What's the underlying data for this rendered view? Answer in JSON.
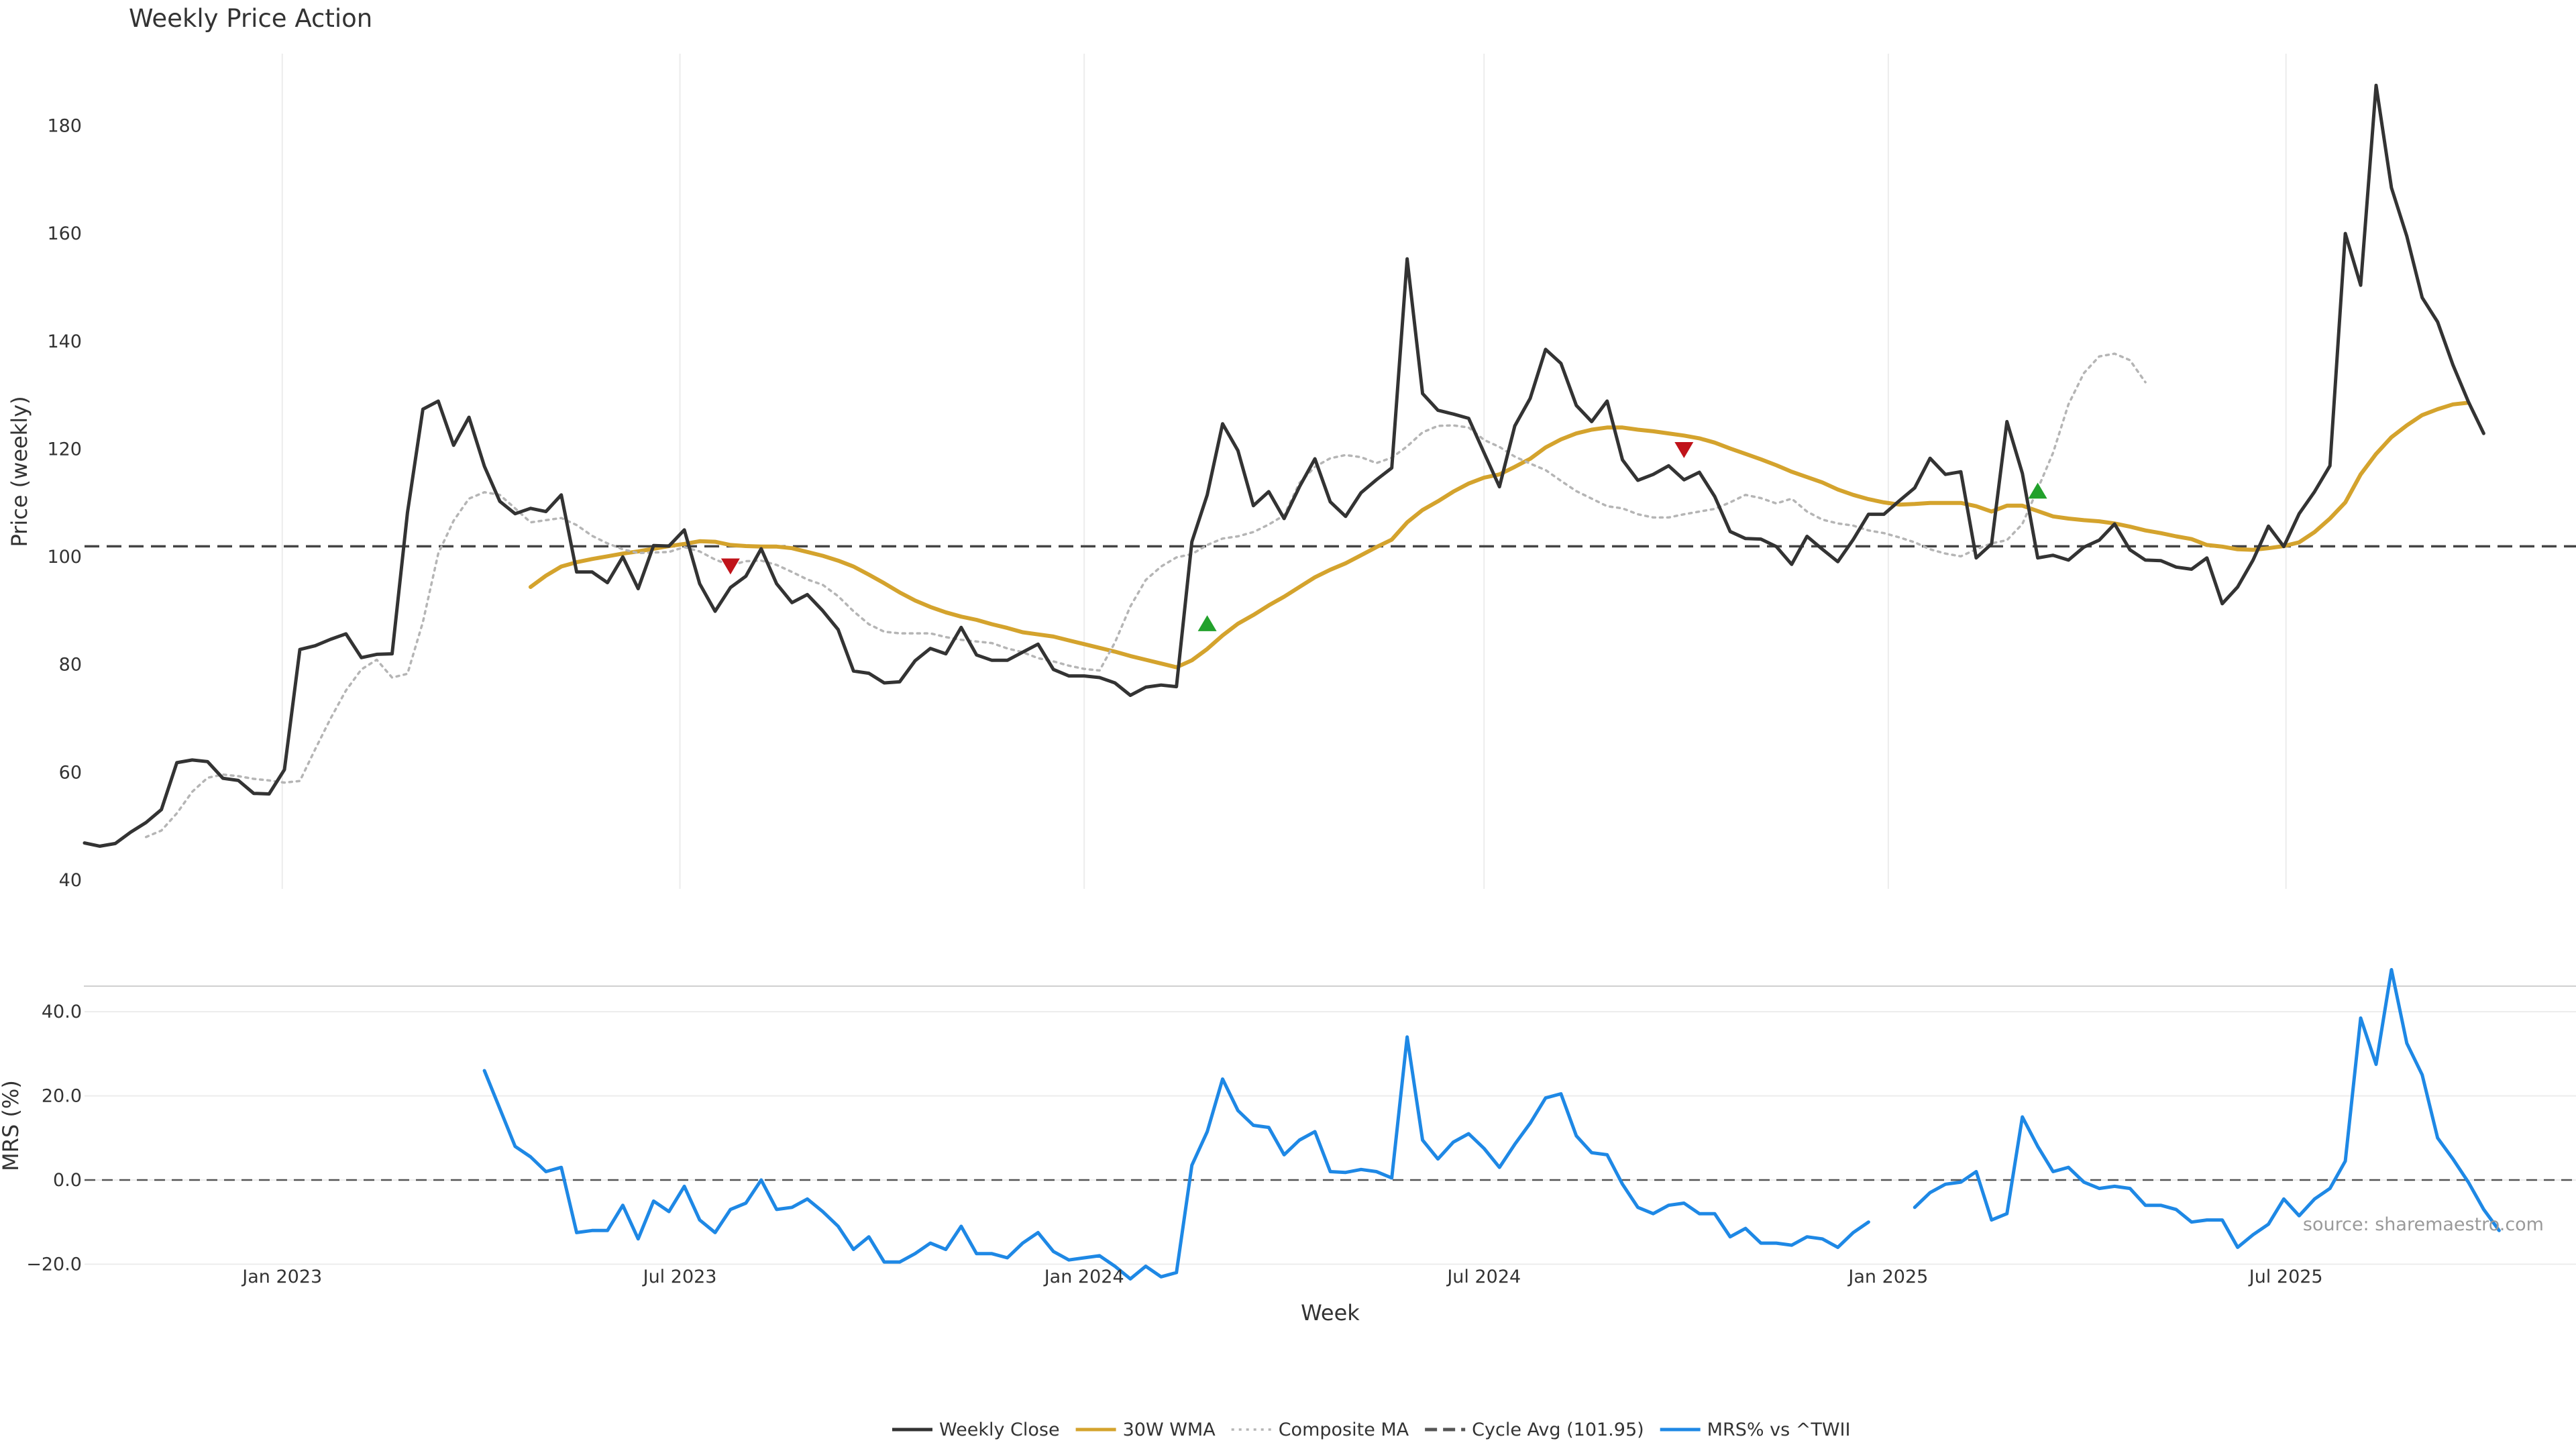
{
  "chart_data": {
    "type": "line",
    "title": "Weekly Price Action",
    "xlabel": "Week",
    "x_ticks": [
      "Jan 2023",
      "Jul 2023",
      "Jan 2024",
      "Jul 2024",
      "Jan 2025",
      "Jul 2025"
    ],
    "x_start": "2022-10-03",
    "x_end": "2025-11-10",
    "grid": true,
    "legend_placement": "bottom-center",
    "source": "source: sharemaestro.com",
    "price_panel": {
      "ylabel": "Price (weekly)",
      "ylim": [
        40,
        195
      ],
      "yticks": [
        40,
        60,
        80,
        100,
        120,
        140,
        160,
        180
      ],
      "cycle_avg": 101.95,
      "series": [
        {
          "name": "Weekly Close",
          "color": "#333333",
          "style": "solid",
          "start_week": 0,
          "values": [
            46.9,
            46.3,
            46.8,
            48.9,
            50.7,
            53.1,
            61.8,
            62.3,
            62.0,
            58.9,
            58.5,
            56.1,
            56.0,
            60.5,
            82.8,
            83.5,
            84.7,
            85.7,
            81.3,
            81.9,
            82.0,
            108.2,
            127.4,
            128.9,
            120.7,
            125.9,
            116.8,
            110.3,
            108.0,
            109.0,
            108.4,
            111.5,
            97.2,
            97.2,
            95.2,
            100.0,
            94.1,
            102.1,
            102.0,
            105.0,
            95.0,
            89.9,
            94.3,
            96.4,
            101.5,
            95.0,
            91.5,
            93.0,
            90.0,
            86.5,
            78.8,
            78.4,
            76.6,
            76.8,
            80.7,
            83.0,
            82.0,
            86.9,
            81.8,
            80.8,
            80.8,
            82.3,
            83.8,
            79.1,
            77.9,
            77.9,
            77.6,
            76.6,
            74.3,
            75.8,
            76.2,
            75.9,
            102.8,
            111.5,
            124.7,
            119.7,
            109.5,
            112.1,
            107.1,
            113.0,
            118.2,
            110.2,
            107.5,
            111.9,
            114.3,
            116.5,
            155.3,
            130.3,
            127.2,
            126.5,
            125.7,
            119.3,
            113.0,
            124.3,
            129.4,
            138.5,
            135.9,
            128.1,
            125.1,
            128.9,
            118.0,
            114.2,
            115.3,
            116.9,
            114.3,
            115.7,
            111.2,
            104.7,
            103.4,
            103.3,
            101.9,
            98.6,
            103.8,
            101.4,
            99.1,
            103.2,
            107.9,
            107.9,
            110.4,
            112.8,
            118.3,
            115.3,
            115.8,
            99.8,
            102.4,
            125.1,
            115.5,
            99.8,
            100.3,
            99.4,
            101.8,
            103.1,
            106.1,
            101.3,
            99.4,
            99.3,
            98.1,
            97.7,
            99.8,
            91.3,
            94.4,
            99.4,
            105.7,
            101.9,
            108.0,
            112.1,
            116.9,
            160.0,
            150.4,
            187.5,
            168.5,
            159.5,
            148.1,
            143.6,
            135.6,
            128.8,
            122.9
          ]
        },
        {
          "name": "30W WMA",
          "color": "#d4a32d",
          "style": "solid",
          "start_week": 29,
          "values": [
            94.4,
            96.5,
            98.2,
            99.0,
            99.6,
            100.1,
            100.6,
            101.0,
            101.5,
            102.0,
            102.4,
            102.9,
            102.8,
            102.2,
            102.0,
            101.9,
            101.9,
            101.6,
            100.9,
            100.2,
            99.3,
            98.2,
            96.7,
            95.1,
            93.4,
            91.9,
            90.7,
            89.7,
            88.9,
            88.3,
            87.5,
            86.8,
            86.0,
            85.6,
            85.2,
            84.5,
            83.8,
            83.1,
            82.4,
            81.6,
            80.9,
            80.2,
            79.5,
            80.8,
            82.9,
            85.4,
            87.6,
            89.2,
            91.0,
            92.6,
            94.4,
            96.2,
            97.6,
            98.8,
            100.3,
            101.8,
            103.2,
            106.4,
            108.7,
            110.3,
            112.1,
            113.6,
            114.7,
            115.3,
            116.7,
            118.2,
            120.3,
            121.8,
            122.9,
            123.6,
            124.0,
            124.0,
            123.6,
            123.3,
            122.9,
            122.5,
            122.0,
            121.2,
            120.1,
            119.1,
            118.1,
            117.0,
            115.8,
            114.8,
            113.8,
            112.5,
            111.5,
            110.7,
            110.1,
            109.7,
            109.8,
            110.0,
            110.0,
            110.0,
            109.4,
            108.4,
            109.5,
            109.5,
            108.5,
            107.5,
            107.1,
            106.8,
            106.6,
            106.2,
            105.6,
            104.9,
            104.4,
            103.8,
            103.3,
            102.2,
            101.9,
            101.4,
            101.3,
            101.6,
            102.0,
            102.7,
            104.6,
            107.1,
            110.1,
            115.3,
            119.1,
            122.2,
            124.4,
            126.3,
            127.4,
            128.3,
            128.6
          ]
        },
        {
          "name": "Composite MA",
          "color": "#b5b5b5",
          "style": "dotted",
          "start_week": 4,
          "values": [
            48.0,
            49.2,
            52.4,
            56.4,
            59.0,
            59.6,
            59.3,
            58.8,
            58.5,
            58.1,
            58.4,
            64.3,
            70.0,
            75.2,
            79.1,
            80.9,
            77.6,
            78.3,
            87.9,
            100.6,
            106.7,
            110.8,
            112.0,
            111.5,
            109.0,
            106.4,
            106.8,
            107.2,
            105.9,
            103.9,
            102.5,
            101.4,
            100.7,
            100.8,
            100.9,
            101.8,
            101.0,
            99.5,
            98.4,
            99.2,
            99.3,
            98.5,
            97.2,
            95.8,
            94.8,
            92.7,
            89.9,
            87.5,
            86.1,
            85.8,
            85.8,
            85.8,
            85.1,
            84.6,
            84.3,
            84.0,
            83.0,
            82.3,
            81.2,
            80.6,
            79.8,
            79.2,
            78.9,
            84.1,
            90.8,
            95.7,
            98.2,
            99.9,
            100.5,
            102.2,
            103.4,
            103.8,
            104.6,
            106.0,
            107.7,
            113.7,
            116.7,
            118.3,
            118.9,
            118.5,
            117.4,
            118.4,
            120.5,
            123.1,
            124.3,
            124.4,
            124.0,
            121.7,
            120.4,
            118.6,
            117.3,
            116.1,
            114.1,
            112.2,
            110.8,
            109.4,
            109.0,
            107.9,
            107.3,
            107.3,
            107.9,
            108.4,
            108.9,
            110.1,
            111.5,
            110.9,
            109.9,
            110.8,
            108.4,
            106.9,
            106.2,
            105.8,
            104.9,
            104.4,
            103.6,
            102.7,
            101.4,
            100.6,
            100.1,
            101.4,
            102.5,
            103.1,
            106.1,
            112.6,
            119.3,
            128.3,
            134.1,
            137.2,
            137.7,
            136.5,
            132.4
          ]
        }
      ],
      "markers": [
        {
          "kind": "sell",
          "week": 42,
          "value": 98.3,
          "color": "#c0131a"
        },
        {
          "kind": "buy",
          "week": 73,
          "value": 87.6,
          "color": "#22a12c"
        },
        {
          "kind": "sell",
          "week": 104,
          "value": 119.9,
          "color": "#c0131a"
        },
        {
          "kind": "buy",
          "week": 127,
          "value": 112.2,
          "color": "#22a12c"
        }
      ]
    },
    "mrs_panel": {
      "ylabel": "MRS (%)",
      "ylim": [
        -22,
        48
      ],
      "yticks": [
        -20.0,
        0.0,
        20.0,
        40.0
      ],
      "tick_labels": [
        "−20.0",
        "0.0",
        "20.0",
        "40.0"
      ],
      "series": [
        {
          "name": "MRS% vs ^TWII",
          "color": "#1e88e5",
          "style": "solid",
          "segments": [
            {
              "start_week": 26,
              "values": [
                26.0,
                17.0,
                8.0,
                5.5,
                2.0,
                3.0,
                -12.5,
                -12.0,
                -12.0,
                -6.0,
                -14.0,
                -5.0,
                -7.5,
                -1.5,
                -9.5,
                -12.5,
                -7.0,
                -5.5,
                0.0,
                -7.0,
                -6.5,
                -4.5,
                -7.5,
                -11.0,
                -16.5,
                -13.5,
                -19.5,
                -19.5,
                -17.5,
                -15.0,
                -16.5,
                -11.0,
                -17.5,
                -17.5,
                -18.5,
                -15.0,
                -12.5,
                -17.0,
                -19.0,
                -18.5,
                -18.0,
                -20.5,
                -23.5,
                -20.5,
                -23.0,
                -22.0,
                3.5,
                11.5,
                24.0,
                16.5,
                13.0,
                12.5,
                6.0,
                9.5,
                11.5,
                2.0,
                1.8,
                2.5,
                2.0,
                0.5,
                34.0,
                9.5,
                5.0,
                9.0,
                11.0,
                7.5,
                3.0,
                8.5,
                13.5,
                19.5,
                20.5,
                10.5,
                6.5,
                6.0,
                -1.0,
                -6.5,
                -8.0,
                -6.0,
                -5.5,
                -8.0,
                -8.0,
                -13.5,
                -11.5,
                -15.0,
                -15.0,
                -15.5,
                -13.5,
                -14.0,
                -16.0,
                -12.5,
                -10.0
              ]
            },
            {
              "start_week": 119,
              "values": [
                -6.5,
                -3.0,
                -1.0,
                -0.5,
                2.0,
                -9.5,
                -8.0,
                15.0,
                8.0,
                2.0,
                3.0,
                -0.5,
                -2.0,
                -1.5,
                -2.0,
                -6.0,
                -6.0,
                -7.0,
                -10.0,
                -9.5,
                -9.5,
                -16.0,
                -13.0,
                -10.5,
                -4.5,
                -8.5,
                -4.5,
                -2.0,
                4.5,
                38.5,
                27.5,
                50.0,
                32.5,
                25.0,
                10.0,
                5.0,
                -0.5,
                -7.0,
                -12.0
              ]
            }
          ]
        }
      ]
    },
    "legend": [
      {
        "label": "Weekly Close",
        "style": "solid",
        "color": "#333333"
      },
      {
        "label": "30W WMA",
        "style": "solid",
        "color": "#d4a32d"
      },
      {
        "label": "Composite MA",
        "style": "dotted",
        "color": "#b5b5b5"
      },
      {
        "label": "Cycle Avg (101.95)",
        "style": "dashed",
        "color": "#555555"
      },
      {
        "label": "MRS% vs ^TWII",
        "style": "solid",
        "color": "#1e88e5"
      }
    ]
  }
}
